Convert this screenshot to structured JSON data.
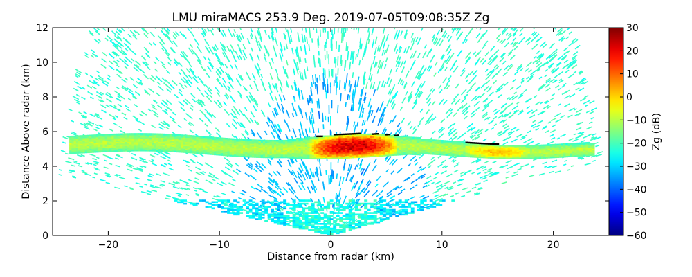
{
  "chart_data": {
    "type": "heatmap",
    "title": "LMU miraMACS 253.9 Deg. 2019-07-05T09:08:35Z  Zg",
    "xlabel": "Distance from radar (km)",
    "ylabel": "Distance Above radar  (km)",
    "colorbar_label": "Zg (dB)",
    "xlim": [
      -25,
      25
    ],
    "ylim": [
      0,
      12
    ],
    "xticks": [
      -20,
      -10,
      0,
      10,
      20
    ],
    "yticks": [
      0,
      2,
      4,
      6,
      8,
      10,
      12
    ],
    "clim": [
      -60,
      30
    ],
    "cticks": [
      30,
      20,
      10,
      0,
      -10,
      -20,
      -30,
      -40,
      -50,
      -60
    ],
    "colormap": "jet",
    "grid": false,
    "scan": {
      "type": "RHI",
      "azimuth_deg": 253.9,
      "max_range_km": 24.5,
      "min_elevation_deg_left": 8,
      "min_elevation_deg_right": 10
    },
    "features": [
      {
        "name": "cloud layer",
        "x_range": [
          -23.5,
          23.5
        ],
        "y_center": 5.1,
        "thickness": 1.2,
        "typical_dB": -12
      },
      {
        "name": "core",
        "x_range": [
          -2,
          6
        ],
        "y_center": 5.1,
        "peak_dB": 22
      },
      {
        "name": "secondary core",
        "x_range": [
          12,
          18
        ],
        "y_center": 4.7,
        "peak_dB": 0
      },
      {
        "name": "boundary layer",
        "y_range": [
          0,
          2
        ],
        "typical_dB": -28
      },
      {
        "name": "noise",
        "typical_dB": -22
      }
    ]
  }
}
